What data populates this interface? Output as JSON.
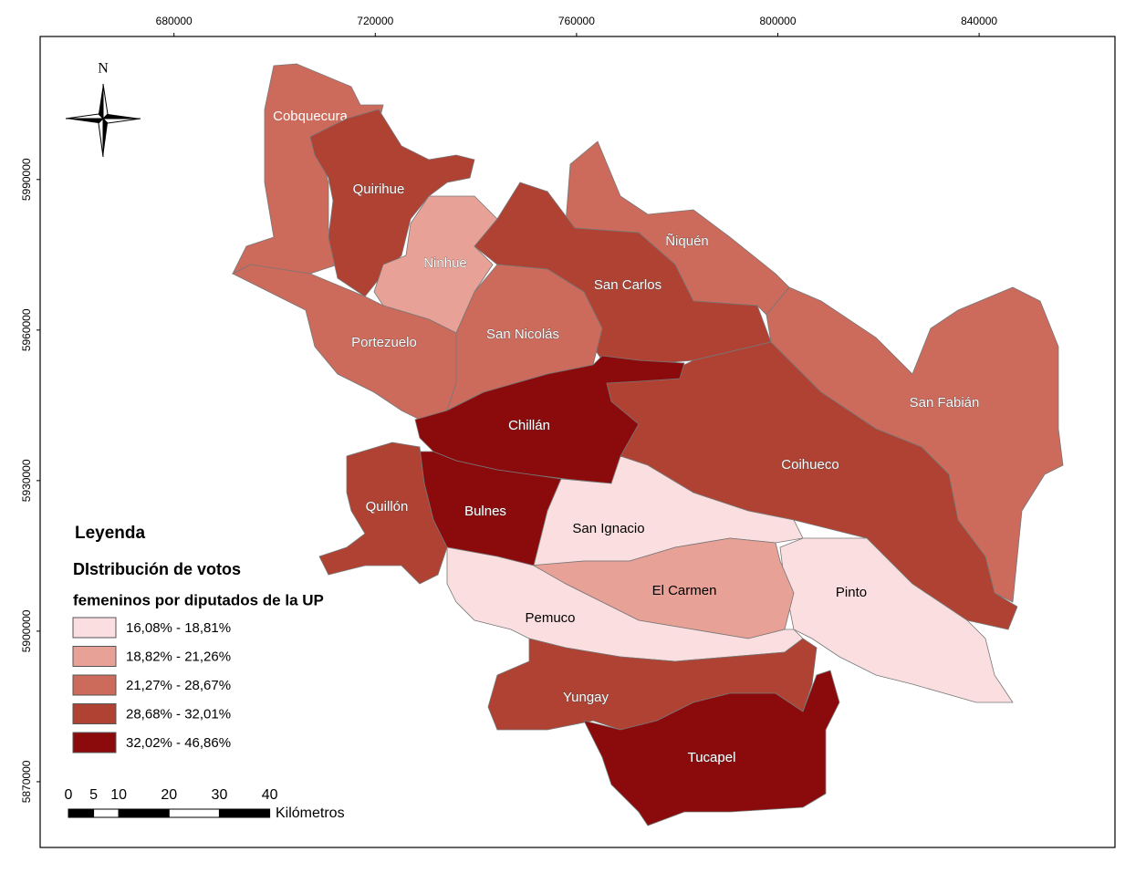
{
  "map": {
    "north": "N",
    "x_axis": {
      "xlim": [
        653400,
        867000
      ],
      "xticks": [
        680000,
        720000,
        760000,
        800000,
        840000
      ]
    },
    "y_axis": {
      "ylim": [
        5856900,
        6018500
      ],
      "yticks": [
        5870000,
        5900000,
        5930000,
        5960000,
        5990000
      ]
    },
    "legend": {
      "title": "Leyenda",
      "subtitle": [
        "DIstribución de votos",
        "femeninos por diputados de la UP"
      ],
      "classes": [
        {
          "label": "16,08% - 18,81%",
          "color": "#fbdfe0"
        },
        {
          "label": "18,82% - 21,26%",
          "color": "#e8a196"
        },
        {
          "label": "21,27% - 28,67%",
          "color": "#cc6a5c"
        },
        {
          "label": "28,68% - 32,01%",
          "color": "#af4233"
        },
        {
          "label": "32,02% - 46,86%",
          "color": "#8b0b0d"
        }
      ]
    },
    "communes": [
      {
        "name": "Cobquecura",
        "class": 2
      },
      {
        "name": "Quirihue",
        "class": 3
      },
      {
        "name": "Ninhue",
        "class": 1
      },
      {
        "name": "Ñiquén",
        "class": 2
      },
      {
        "name": "San Carlos",
        "class": 3
      },
      {
        "name": "Portezuelo",
        "class": 2
      },
      {
        "name": "San Nicolás",
        "class": 2
      },
      {
        "name": "San Fabián",
        "class": 2
      },
      {
        "name": "Coihueco",
        "class": 3
      },
      {
        "name": "Chillán",
        "class": 4
      },
      {
        "name": "Bulnes",
        "class": 4
      },
      {
        "name": "Quillón",
        "class": 3
      },
      {
        "name": "San Ignacio",
        "class": 0
      },
      {
        "name": "Pinto",
        "class": 0
      },
      {
        "name": "El Carmen",
        "class": 1
      },
      {
        "name": "Pemuco",
        "class": 0
      },
      {
        "name": "Yungay",
        "class": 3
      },
      {
        "name": "Tucapel",
        "class": 4
      }
    ],
    "scale_bar": {
      "ticks": [
        0,
        5,
        10,
        20,
        30,
        40
      ],
      "unit": "Kilómetros"
    }
  }
}
